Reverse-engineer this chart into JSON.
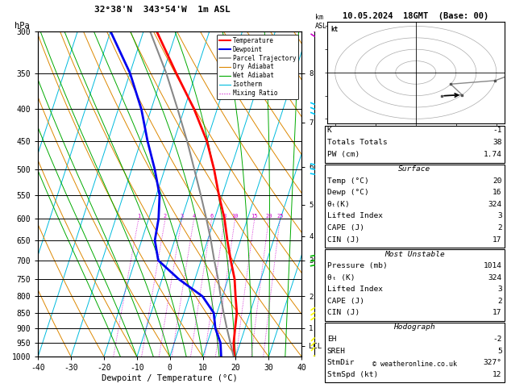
{
  "title_left": "32°38'N  343°54'W  1m ASL",
  "title_right": "10.05.2024  18GMT  (Base: 00)",
  "xlabel": "Dewpoint / Temperature (°C)",
  "ylabel_left": "hPa",
  "pressure_levels": [
    300,
    350,
    400,
    450,
    500,
    550,
    600,
    650,
    700,
    750,
    800,
    850,
    900,
    950,
    1000
  ],
  "pressure_min": 300,
  "pressure_max": 1000,
  "temp_min": -40,
  "temp_max": 40,
  "skew_factor": 32.0,
  "temperature_profile": {
    "pressure": [
      1014,
      950,
      900,
      850,
      800,
      750,
      700,
      650,
      600,
      550,
      500,
      450,
      400,
      350,
      300
    ],
    "temp": [
      20,
      18,
      17,
      16,
      14,
      12,
      9,
      6,
      3,
      -1,
      -5,
      -10,
      -17,
      -26,
      -36
    ]
  },
  "dewpoint_profile": {
    "pressure": [
      1014,
      950,
      900,
      850,
      800,
      750,
      700,
      650,
      600,
      550,
      500,
      450,
      400,
      350,
      300
    ],
    "temp": [
      16,
      14,
      11,
      9,
      4,
      -5,
      -13,
      -16,
      -17,
      -19,
      -23,
      -28,
      -33,
      -40,
      -50
    ]
  },
  "parcel_trajectory": {
    "pressure": [
      1014,
      950,
      900,
      850,
      800,
      750,
      700,
      650,
      600,
      550,
      500,
      450,
      400,
      350,
      300
    ],
    "temp": [
      20,
      17.0,
      14.5,
      12.0,
      9.5,
      7.0,
      4.0,
      1.0,
      -2.5,
      -6.5,
      -11.0,
      -16.0,
      -22.0,
      -29.0,
      -38.0
    ]
  },
  "km_labels": [
    [
      "8",
      350
    ],
    [
      "7",
      420
    ],
    [
      "6",
      495
    ],
    [
      "5",
      570
    ],
    [
      "4",
      640
    ],
    [
      "3",
      700
    ],
    [
      "2",
      800
    ],
    [
      "1",
      900
    ],
    [
      "LCL",
      960
    ]
  ],
  "mixing_ratio_values": [
    1,
    2,
    3,
    4,
    6,
    8,
    10,
    15,
    20,
    25
  ],
  "mixing_ratio_label_pressure": 600,
  "surface_temp": 20,
  "surface_dewp": 16,
  "surface_theta_e": 324,
  "lifted_index": 3,
  "cape": 2,
  "cin": 17,
  "mu_pressure": 1014,
  "mu_theta_e": 324,
  "mu_lifted_index": 3,
  "mu_cape": 2,
  "mu_cin": 17,
  "K": -1,
  "totals_totals": 38,
  "PW": "1.74",
  "EH": -2,
  "SREH": 5,
  "StmDir": "327°",
  "StmSpd": 12,
  "wind_levels": {
    "pressure": [
      1014,
      950,
      850,
      700,
      500,
      400,
      300
    ],
    "speed": [
      12,
      15,
      10,
      20,
      35,
      45,
      55
    ],
    "direction": [
      327,
      310,
      300,
      280,
      260,
      250,
      240
    ],
    "colors": [
      "#ffff00",
      "#ffff00",
      "#ffff00",
      "#00bb00",
      "#00ccff",
      "#00ccff",
      "#cc00cc"
    ]
  },
  "hodograph": {
    "pressure": [
      1014,
      950,
      850,
      700,
      500,
      400,
      300
    ],
    "speed": [
      12,
      15,
      10,
      20,
      35,
      45,
      55
    ],
    "direction": [
      327,
      310,
      300,
      280,
      260,
      250,
      240
    ]
  },
  "colors": {
    "temperature": "#ff0000",
    "dewpoint": "#0000ee",
    "parcel": "#888888",
    "dry_adiabat": "#dd8800",
    "wet_adiabat": "#00aa00",
    "isotherm": "#00bbdd",
    "mixing_ratio": "#cc00cc",
    "isobar": "#000000",
    "background": "#ffffff"
  },
  "legend_entries": [
    {
      "label": "Temperature",
      "color": "#ff0000",
      "lw": 1.5,
      "ls": "-",
      "dot": false
    },
    {
      "label": "Dewpoint",
      "color": "#0000ee",
      "lw": 1.5,
      "ls": "-",
      "dot": false
    },
    {
      "label": "Parcel Trajectory",
      "color": "#888888",
      "lw": 1.2,
      "ls": "-",
      "dot": false
    },
    {
      "label": "Dry Adiabat",
      "color": "#dd8800",
      "lw": 0.8,
      "ls": "-",
      "dot": false
    },
    {
      "label": "Wet Adiabat",
      "color": "#00aa00",
      "lw": 0.8,
      "ls": "-",
      "dot": false
    },
    {
      "label": "Isotherm",
      "color": "#00bbdd",
      "lw": 0.8,
      "ls": "-",
      "dot": false
    },
    {
      "label": "Mixing Ratio",
      "color": "#cc00cc",
      "lw": 0.8,
      "ls": ":",
      "dot": true
    }
  ]
}
